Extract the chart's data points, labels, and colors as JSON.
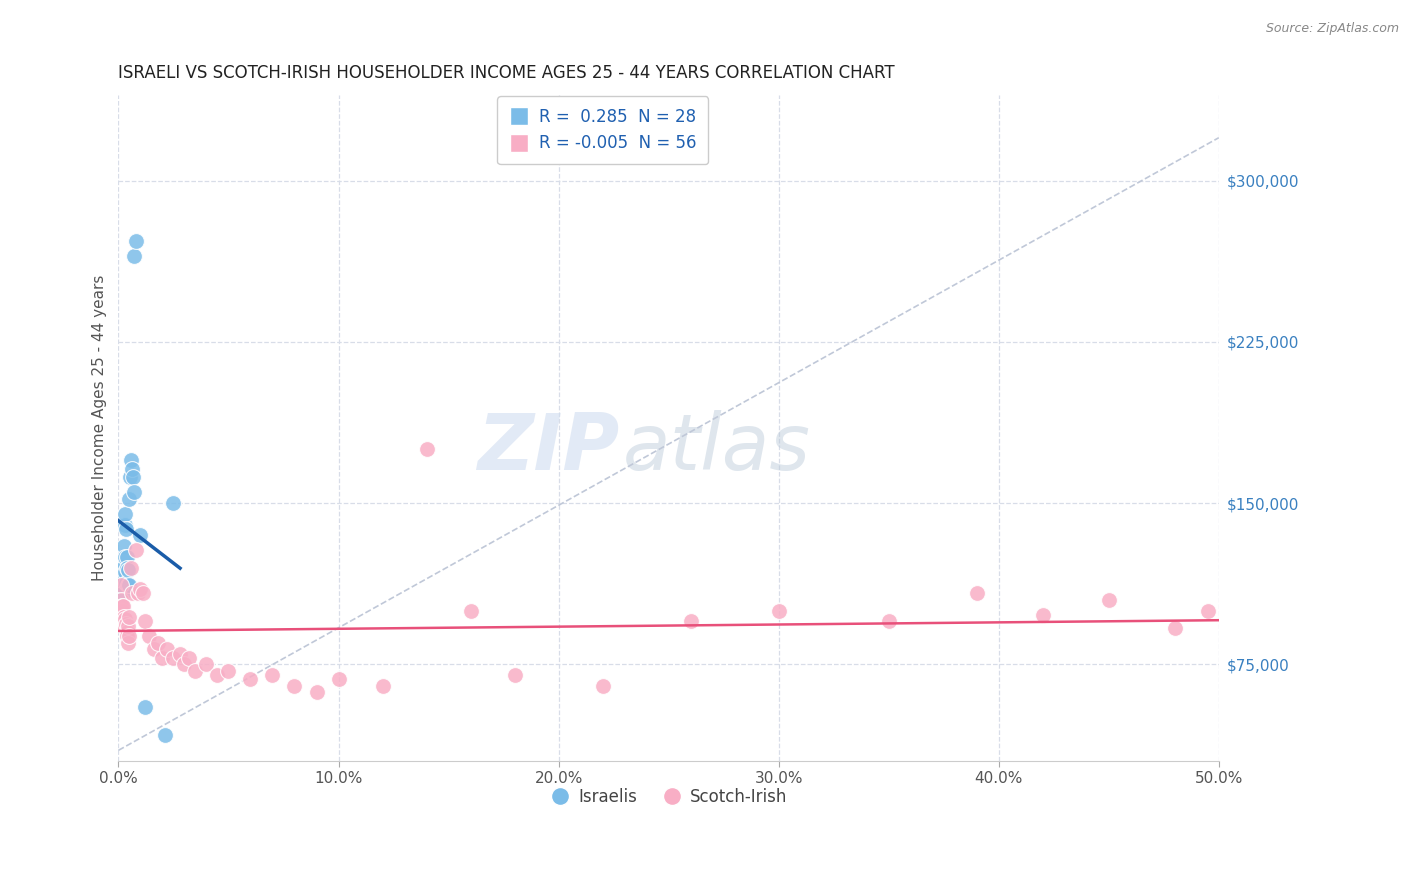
{
  "title": "ISRAELI VS SCOTCH-IRISH HOUSEHOLDER INCOME AGES 25 - 44 YEARS CORRELATION CHART",
  "source": "Source: ZipAtlas.com",
  "ylabel": "Householder Income Ages 25 - 44 years",
  "xlim": [
    0.0,
    50.0
  ],
  "ylim": [
    30000,
    340000
  ],
  "xticks": [
    0.0,
    10.0,
    20.0,
    30.0,
    40.0,
    50.0
  ],
  "xticklabels": [
    "0.0%",
    "10.0%",
    "20.0%",
    "30.0%",
    "40.0%",
    "50.0%"
  ],
  "yticks_right": [
    75000,
    150000,
    225000,
    300000
  ],
  "ytick_labels_right": [
    "$75,000",
    "$150,000",
    "$225,000",
    "$300,000"
  ],
  "legend_R_israeli": " 0.285",
  "legend_N_israeli": "28",
  "legend_R_scotch": "-0.005",
  "legend_N_scotch": "56",
  "israeli_color": "#7bbce8",
  "scotch_color": "#f8aec5",
  "regression_line_color_israeli": "#1a5ca8",
  "regression_line_color_scotch": "#e8507a",
  "dashed_line_color": "#c0c8d8",
  "watermark_zip": "ZIP",
  "watermark_atlas": "atlas",
  "grid_color": "#d8dde8",
  "bg_color": "#ffffff",
  "title_fontsize": 12,
  "source_fontsize": 9,
  "israelis_x": [
    0.15,
    0.2,
    0.22,
    0.25,
    0.25,
    0.28,
    0.3,
    0.3,
    0.32,
    0.33,
    0.35,
    0.38,
    0.4,
    0.42,
    0.45,
    0.48,
    0.5,
    0.52,
    0.55,
    0.6,
    0.65,
    0.7,
    0.72,
    0.8,
    1.0,
    1.2,
    2.1,
    2.5
  ],
  "israelis_y": [
    112000,
    120000,
    108000,
    130000,
    115000,
    125000,
    140000,
    118000,
    145000,
    138000,
    113000,
    125000,
    120000,
    112000,
    119000,
    112000,
    152000,
    162000,
    170000,
    166000,
    162000,
    265000,
    155000,
    272000,
    135000,
    55000,
    42000,
    150000
  ],
  "scotch_x": [
    0.1,
    0.12,
    0.15,
    0.18,
    0.2,
    0.22,
    0.22,
    0.25,
    0.28,
    0.3,
    0.32,
    0.35,
    0.38,
    0.4,
    0.42,
    0.45,
    0.48,
    0.5,
    0.55,
    0.6,
    0.8,
    0.9,
    1.0,
    1.1,
    1.2,
    1.4,
    1.6,
    1.8,
    2.0,
    2.2,
    2.5,
    2.8,
    3.0,
    3.2,
    3.5,
    4.0,
    4.5,
    5.0,
    6.0,
    7.0,
    8.0,
    9.0,
    10.0,
    12.0,
    14.0,
    16.0,
    18.0,
    22.0,
    26.0,
    30.0,
    35.0,
    39.0,
    42.0,
    45.0,
    48.0,
    49.5
  ],
  "scotch_y": [
    112000,
    105000,
    100000,
    102000,
    97000,
    95000,
    102000,
    97000,
    93000,
    96000,
    92000,
    94000,
    90000,
    88000,
    93000,
    85000,
    88000,
    97000,
    120000,
    108000,
    128000,
    108000,
    110000,
    108000,
    95000,
    88000,
    82000,
    85000,
    78000,
    82000,
    78000,
    80000,
    75000,
    78000,
    72000,
    75000,
    70000,
    72000,
    68000,
    70000,
    65000,
    62000,
    68000,
    65000,
    175000,
    100000,
    70000,
    65000,
    95000,
    100000,
    95000,
    108000,
    98000,
    105000,
    92000,
    100000
  ]
}
